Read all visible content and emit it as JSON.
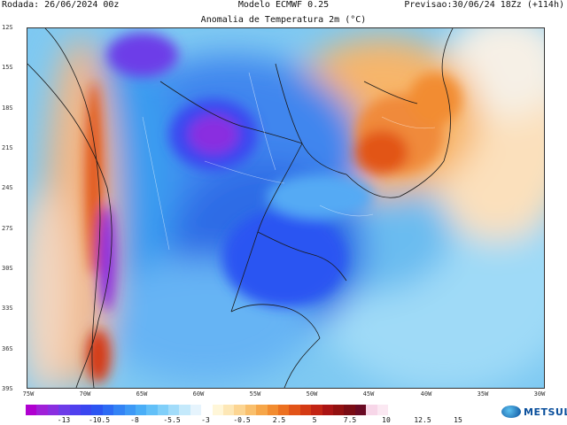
{
  "header": {
    "run": "Rodada: 26/06/2024 00z",
    "model": "Modelo ECMWF 0.25",
    "forecast": "Previsao:30/06/24 18Zz (+114h)",
    "title": "Anomalia de Temperatura 2m (°C)"
  },
  "lat_labels": [
    "12S",
    "15S",
    "18S",
    "21S",
    "24S",
    "27S",
    "30S",
    "33S",
    "36S",
    "39S"
  ],
  "lon_labels": [
    "75W",
    "70W",
    "65W",
    "60W",
    "55W",
    "50W",
    "45W",
    "40W",
    "35W",
    "30W"
  ],
  "colorbar": {
    "labels": [
      "-13",
      "-10.5",
      "-8",
      "-5.5",
      "-3",
      "-0.5",
      "2.5",
      "5",
      "7.5",
      "10",
      "12.5",
      "15"
    ],
    "colors": [
      "#b000d0",
      "#a020d8",
      "#8a2ee0",
      "#6d3ce8",
      "#5040ee",
      "#3a46f0",
      "#2c55f2",
      "#2d6bf4",
      "#3383f5",
      "#3d99f6",
      "#4aaef7",
      "#62c0f8",
      "#80cff9",
      "#a2dcfa",
      "#c4e9fb",
      "#e6f4fd",
      "#ffffff",
      "#fff6d8",
      "#fde7b6",
      "#fcd592",
      "#f9bf6c",
      "#f6a649",
      "#f28c30",
      "#ec7020",
      "#e25418",
      "#d43a14",
      "#c22414",
      "#aa1414",
      "#921010",
      "#7a0c14",
      "#6a0a24",
      "#f7d6e8",
      "#fbe8f2"
    ]
  },
  "logo": {
    "text": "METSUL",
    "icon": "globe-icon"
  }
}
